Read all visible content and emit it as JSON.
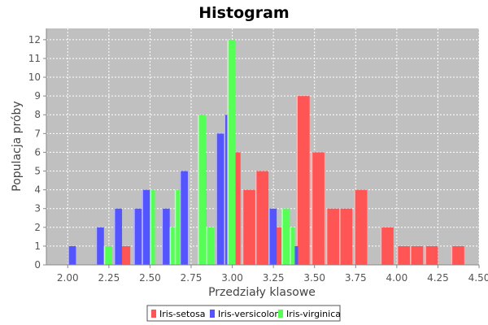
{
  "chart_data": {
    "type": "bar",
    "title": "Histogram",
    "xlabel": "Przedziały klasowe",
    "ylabel": "Populacja próby",
    "xlim": [
      1.87,
      4.5
    ],
    "ylim": [
      0,
      12.6
    ],
    "x_ticks": [
      "2.00",
      "2.25",
      "2.50",
      "2.75",
      "3.00",
      "3.25",
      "3.50",
      "3.75",
      "4.00",
      "4.25",
      "4.50"
    ],
    "y_ticks": [
      "0",
      "1",
      "2",
      "3",
      "4",
      "5",
      "6",
      "7",
      "8",
      "9",
      "10",
      "11",
      "12"
    ],
    "grid": true,
    "legend_position": "bottom",
    "series": [
      {
        "name": "Iris-setosa",
        "color": "#ff5555",
        "bars": [
          {
            "x0": 2.3,
            "x1": 2.38,
            "y": 1
          },
          {
            "x0": 2.9,
            "x1": 2.97,
            "y": 1
          },
          {
            "x0": 2.98,
            "x1": 3.05,
            "y": 6
          },
          {
            "x0": 3.06,
            "x1": 3.14,
            "y": 4
          },
          {
            "x0": 3.14,
            "x1": 3.22,
            "y": 5
          },
          {
            "x0": 3.22,
            "x1": 3.3,
            "y": 2
          },
          {
            "x0": 3.39,
            "x1": 3.47,
            "y": 9
          },
          {
            "x0": 3.48,
            "x1": 3.56,
            "y": 6
          },
          {
            "x0": 3.57,
            "x1": 3.65,
            "y": 3
          },
          {
            "x0": 3.65,
            "x1": 3.73,
            "y": 3
          },
          {
            "x0": 3.74,
            "x1": 3.82,
            "y": 4
          },
          {
            "x0": 3.9,
            "x1": 3.98,
            "y": 2
          },
          {
            "x0": 4.0,
            "x1": 4.08,
            "y": 1
          },
          {
            "x0": 4.08,
            "x1": 4.16,
            "y": 1
          },
          {
            "x0": 4.17,
            "x1": 4.25,
            "y": 1
          },
          {
            "x0": 4.33,
            "x1": 4.41,
            "y": 1
          }
        ]
      },
      {
        "name": "Iris-versicolor",
        "color": "#5555ff",
        "bars": [
          {
            "x0": 2.0,
            "x1": 2.05,
            "y": 1
          },
          {
            "x0": 2.17,
            "x1": 2.22,
            "y": 2
          },
          {
            "x0": 2.28,
            "x1": 2.33,
            "y": 3
          },
          {
            "x0": 2.4,
            "x1": 2.45,
            "y": 3
          },
          {
            "x0": 2.45,
            "x1": 2.5,
            "y": 4
          },
          {
            "x0": 2.57,
            "x1": 2.62,
            "y": 3
          },
          {
            "x0": 2.68,
            "x1": 2.73,
            "y": 5
          },
          {
            "x0": 2.79,
            "x1": 2.84,
            "y": 6
          },
          {
            "x0": 2.9,
            "x1": 2.95,
            "y": 7
          },
          {
            "x0": 2.95,
            "x1": 3.0,
            "y": 8
          },
          {
            "x0": 3.22,
            "x1": 3.27,
            "y": 3
          },
          {
            "x0": 3.3,
            "x1": 3.35,
            "y": 1
          },
          {
            "x0": 3.35,
            "x1": 3.4,
            "y": 1
          }
        ]
      },
      {
        "name": "Iris-virginica",
        "color": "#55ff55",
        "bars": [
          {
            "x0": 2.22,
            "x1": 2.27,
            "y": 1
          },
          {
            "x0": 2.5,
            "x1": 2.53,
            "y": 4
          },
          {
            "x0": 2.62,
            "x1": 2.65,
            "y": 2
          },
          {
            "x0": 2.65,
            "x1": 2.68,
            "y": 4
          },
          {
            "x0": 2.79,
            "x1": 2.84,
            "y": 8
          },
          {
            "x0": 2.84,
            "x1": 2.89,
            "y": 2
          },
          {
            "x0": 2.97,
            "x1": 3.02,
            "y": 12
          },
          {
            "x0": 3.3,
            "x1": 3.35,
            "y": 3
          },
          {
            "x0": 3.35,
            "x1": 3.38,
            "y": 2
          }
        ]
      }
    ]
  }
}
